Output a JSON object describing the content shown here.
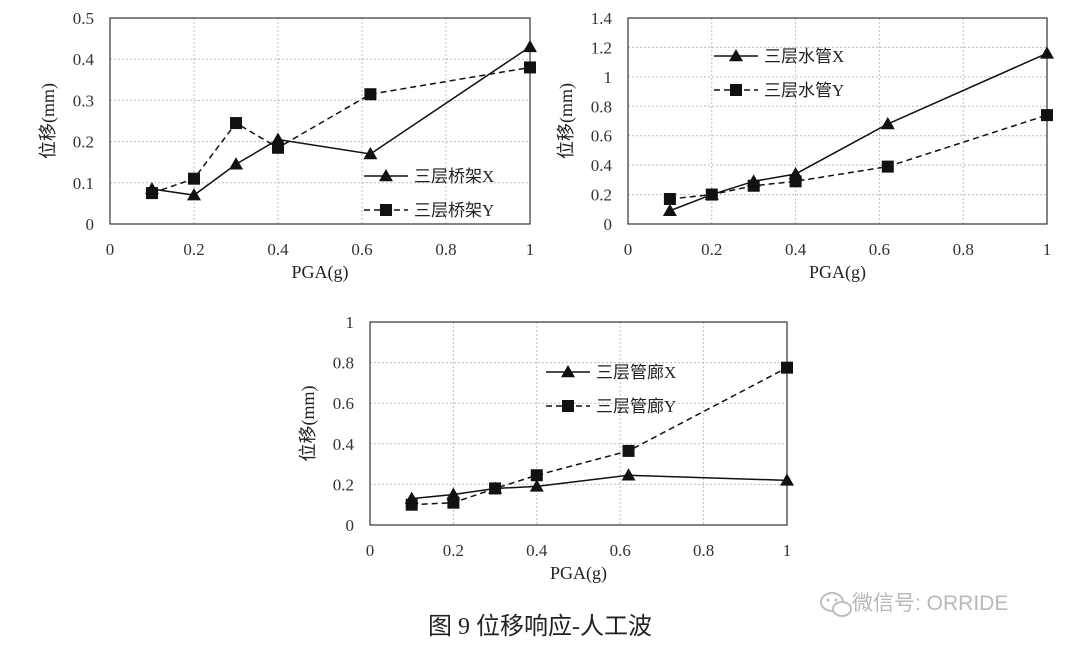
{
  "caption": "图 9 位移响应-人工波",
  "watermark": "微信号: ORRIDE",
  "chart_data": [
    {
      "type": "line",
      "xlabel": "PGA(g)",
      "ylabel": "位移(mm)",
      "xlim": [
        0,
        1
      ],
      "ylim": [
        0,
        0.5
      ],
      "xticks": [
        "0",
        "0.2",
        "0.4",
        "0.6",
        "0.8",
        "1"
      ],
      "yticks": [
        "0",
        "0.1",
        "0.2",
        "0.3",
        "0.4",
        "0.5"
      ],
      "grid": true,
      "legend_position": "bottom-right",
      "series": [
        {
          "name": "三层桥架X",
          "marker": "triangle",
          "line": "solid",
          "x": [
            0.1,
            0.2,
            0.3,
            0.4,
            0.62,
            1.0
          ],
          "y": [
            0.085,
            0.07,
            0.145,
            0.205,
            0.17,
            0.43
          ]
        },
        {
          "name": "三层桥架Y",
          "marker": "square",
          "line": "dashed",
          "x": [
            0.1,
            0.2,
            0.3,
            0.4,
            0.62,
            1.0
          ],
          "y": [
            0.075,
            0.11,
            0.245,
            0.185,
            0.315,
            0.38
          ]
        }
      ]
    },
    {
      "type": "line",
      "xlabel": "PGA(g)",
      "ylabel": "位移(mm)",
      "xlim": [
        0,
        1
      ],
      "ylim": [
        0,
        1.4
      ],
      "xticks": [
        "0",
        "0.2",
        "0.4",
        "0.6",
        "0.8",
        "1"
      ],
      "yticks": [
        "0",
        "0.2",
        "0.4",
        "0.6",
        "0.8",
        "1",
        "1.2",
        "1.4"
      ],
      "grid": true,
      "legend_position": "top-left",
      "series": [
        {
          "name": "三层水管X",
          "marker": "triangle",
          "line": "solid",
          "x": [
            0.1,
            0.2,
            0.3,
            0.4,
            0.62,
            1.0
          ],
          "y": [
            0.09,
            0.2,
            0.29,
            0.34,
            0.68,
            1.16
          ]
        },
        {
          "name": "三层水管Y",
          "marker": "square",
          "line": "dashed",
          "x": [
            0.1,
            0.2,
            0.3,
            0.4,
            0.62,
            1.0
          ],
          "y": [
            0.17,
            0.2,
            0.26,
            0.29,
            0.39,
            0.74
          ]
        }
      ]
    },
    {
      "type": "line",
      "xlabel": "PGA(g)",
      "ylabel": "位移(mm)",
      "xlim": [
        0,
        1
      ],
      "ylim": [
        0,
        1
      ],
      "xticks": [
        "0",
        "0.2",
        "0.4",
        "0.6",
        "0.8",
        "1"
      ],
      "yticks": [
        "0",
        "0.2",
        "0.4",
        "0.6",
        "0.8",
        "1"
      ],
      "grid": true,
      "legend_position": "top-left",
      "series": [
        {
          "name": "三层管廊X",
          "marker": "triangle",
          "line": "solid",
          "x": [
            0.1,
            0.2,
            0.3,
            0.4,
            0.62,
            1.0
          ],
          "y": [
            0.13,
            0.15,
            0.18,
            0.19,
            0.245,
            0.22
          ]
        },
        {
          "name": "三层管廊Y",
          "marker": "square",
          "line": "dashed",
          "x": [
            0.1,
            0.2,
            0.3,
            0.4,
            0.62,
            1.0
          ],
          "y": [
            0.1,
            0.11,
            0.18,
            0.245,
            0.365,
            0.775
          ]
        }
      ]
    }
  ]
}
